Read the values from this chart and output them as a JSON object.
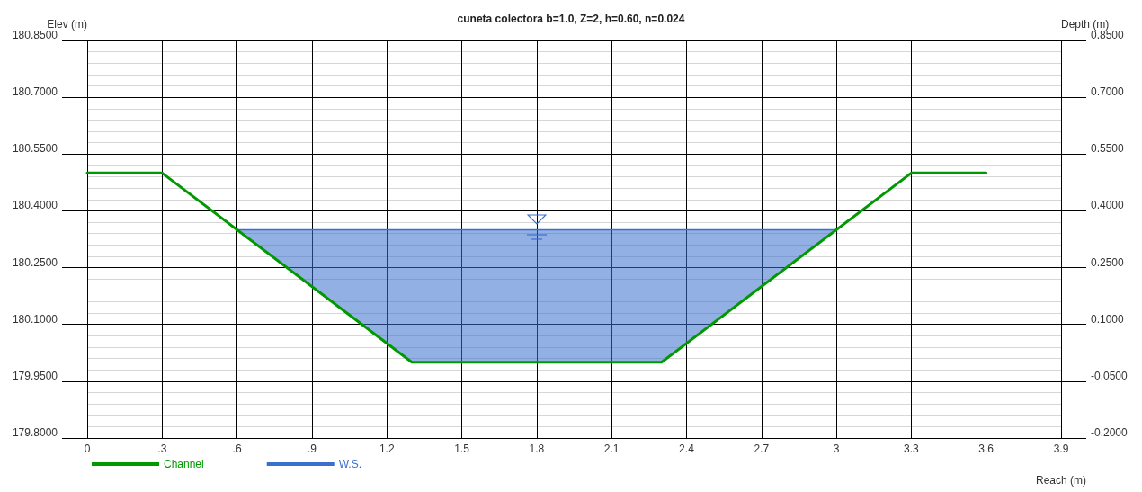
{
  "chart_data": {
    "type": "line",
    "title": "cuneta colectora b=1.0, Z=2, h=0.60, n=0.024",
    "xlabel": "Reach (m)",
    "ylabel": "Elev (m)",
    "y2label": "Depth (m)",
    "series": [
      {
        "name": "Channel",
        "color": "#009900",
        "x": [
          0,
          0.3,
          1.3,
          2.3,
          3.3,
          3.6
        ],
        "values": [
          180.5,
          180.5,
          180.0,
          180.0,
          180.5,
          180.5
        ]
      },
      {
        "name": "W.S.",
        "color": "#3a6fd0",
        "x": [
          0.6,
          1.3,
          2.3,
          3.0
        ],
        "values": [
          180.35,
          180.35,
          180.35,
          180.35
        ],
        "upper": [
          180.35,
          180.35,
          180.35,
          180.35
        ],
        "lower": [
          180.35,
          180.0,
          180.0,
          180.35
        ]
      }
    ],
    "xlim": [
      0,
      3.9
    ],
    "xticks": [
      0,
      {
        "value": 0.3,
        "label": ".3"
      },
      {
        "value": 0.6,
        "label": ".6"
      },
      {
        "value": 0.9,
        "label": ".9"
      },
      1.2,
      1.5,
      1.8,
      2.1,
      2.4,
      2.7,
      3,
      3.3,
      3.6,
      3.9
    ],
    "ylim": [
      179.8,
      180.85
    ],
    "yticks": [
      {
        "value": 179.8,
        "label": "179.8000"
      },
      {
        "value": 179.95,
        "label": "179.9500"
      },
      {
        "value": 180.1,
        "label": "180.1000"
      },
      {
        "value": 180.25,
        "label": "180.2500"
      },
      {
        "value": 180.4,
        "label": "180.4000"
      },
      {
        "value": 180.55,
        "label": "180.5500"
      },
      {
        "value": 180.7,
        "label": "180.7000"
      },
      {
        "value": 180.85,
        "label": "180.8500"
      }
    ],
    "y2lim": [
      -0.2,
      0.85
    ],
    "y2ticks": [
      {
        "value": -0.2,
        "label": "-0.2000"
      },
      {
        "value": -0.05,
        "label": "-0.0500"
      },
      {
        "value": 0.1,
        "label": "0.1000"
      },
      {
        "value": 0.25,
        "label": "0.2500"
      },
      {
        "value": 0.4,
        "label": "0.4000"
      },
      {
        "value": 0.55,
        "label": "0.5500"
      },
      {
        "value": 0.7,
        "label": "0.7000"
      },
      {
        "value": 0.85,
        "label": "0.8500"
      }
    ],
    "grid": true,
    "legend": "bottom left",
    "marker": "none",
    "line_style": "solid"
  }
}
